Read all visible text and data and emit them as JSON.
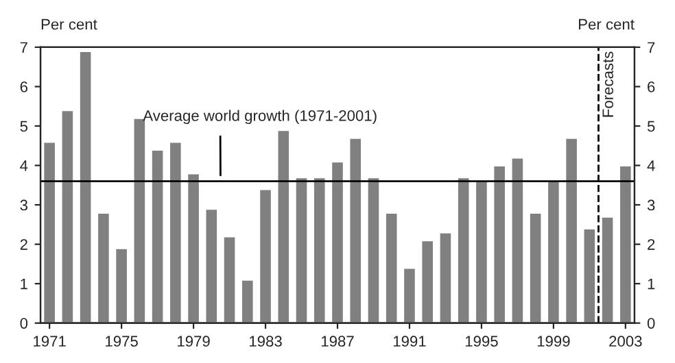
{
  "chart_data": {
    "type": "bar",
    "ylabel": "Per cent",
    "y2label": "Per cent",
    "x": [
      1971,
      1972,
      1973,
      1974,
      1975,
      1976,
      1977,
      1978,
      1979,
      1980,
      1981,
      1982,
      1983,
      1984,
      1985,
      1986,
      1987,
      1988,
      1989,
      1990,
      1991,
      1992,
      1993,
      1994,
      1995,
      1996,
      1997,
      1998,
      1999,
      2000,
      2001,
      2002,
      2003
    ],
    "values": [
      4.6,
      5.4,
      6.9,
      2.8,
      1.9,
      5.2,
      4.4,
      4.6,
      3.8,
      2.9,
      2.2,
      1.1,
      3.4,
      4.9,
      3.7,
      3.7,
      4.1,
      4.7,
      3.7,
      2.8,
      1.4,
      2.1,
      2.3,
      3.7,
      3.6,
      4.0,
      4.2,
      2.8,
      3.6,
      4.7,
      2.4,
      2.7,
      4.0
    ],
    "color": "#808080",
    "xlim": [
      1970.5,
      2003.5
    ],
    "xticks": [
      1971,
      1975,
      1979,
      1983,
      1987,
      1991,
      1995,
      1999,
      2003
    ],
    "ylim": [
      0,
      7
    ],
    "yticks": [
      0,
      1,
      2,
      3,
      4,
      5,
      6,
      7
    ],
    "y2lim": [
      0,
      7
    ],
    "y2ticks": [
      0,
      1,
      2,
      3,
      4,
      5,
      6,
      7
    ],
    "ref_lines": [
      {
        "axis": "y",
        "value": 3.6,
        "label": "Average world growth (1971-2001)",
        "color": "#000000",
        "line_style": "solid"
      },
      {
        "axis": "x",
        "value": 2001.5,
        "label": "Forecasts",
        "color": "#000000",
        "line_style": "dashed"
      }
    ],
    "grid": false,
    "legend": false
  }
}
